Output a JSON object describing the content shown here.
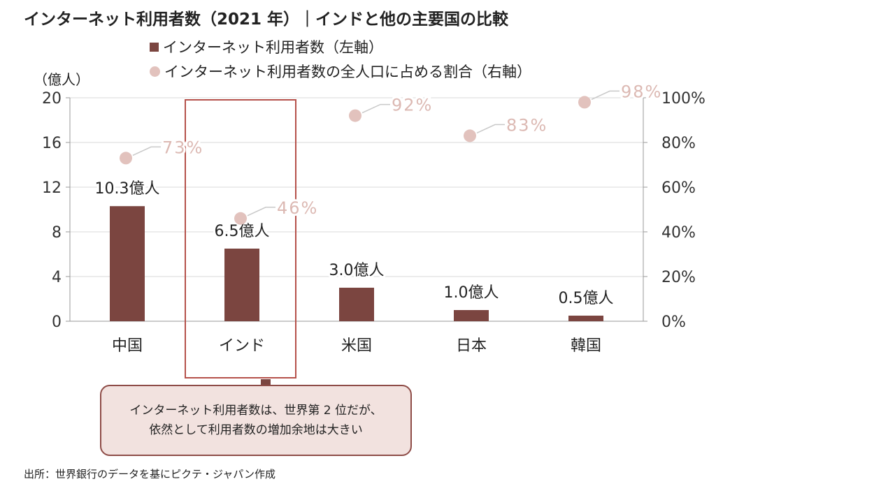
{
  "title": "インターネット利用者数（2021 年）｜インドと他の主要国の比較",
  "legend": {
    "bar_label": "インターネット利用者数（左軸）",
    "dot_label": "インターネット利用者数の全人口に占める割合（右軸）"
  },
  "left_unit": "（億人）",
  "callout": {
    "line1": "インターネット利用者数は、世界第 2 位だが、",
    "line2": "依然として利用者数の増加余地は大きい"
  },
  "source": "出所：世界銀行のデータを基にピクテ・ジャパン作成",
  "colors": {
    "bar": "#7b4540",
    "dot": "#e2c2bd",
    "dot_label": "#dcb9b3",
    "highlight_box": "#b5514a",
    "callout_bg": "#f2e2df",
    "gridline": "#d9d9d9"
  },
  "chart_data": {
    "type": "bar",
    "categories": [
      "中国",
      "インド",
      "米国",
      "日本",
      "韓国"
    ],
    "series": [
      {
        "name": "インターネット利用者数（左軸）",
        "type": "bar",
        "axis": "left",
        "values": [
          10.3,
          6.5,
          3.0,
          1.0,
          0.5
        ],
        "labels": [
          "10.3億人",
          "6.5億人",
          "3.0億人",
          "1.0億人",
          "0.5億人"
        ]
      },
      {
        "name": "インターネット利用者数の全人口に占める割合（右軸）",
        "type": "scatter",
        "axis": "right",
        "values": [
          73,
          46,
          92,
          83,
          98
        ],
        "labels": [
          "73%",
          "46%",
          "92%",
          "83%",
          "98%"
        ]
      }
    ],
    "left_axis": {
      "ylim": [
        0,
        20
      ],
      "ticks": [
        0,
        4,
        8,
        12,
        16,
        20
      ],
      "tick_labels": [
        "0",
        "4",
        "8",
        "12",
        "16",
        "20"
      ]
    },
    "right_axis": {
      "ylim": [
        0,
        100
      ],
      "ticks": [
        0,
        20,
        40,
        60,
        80,
        100
      ],
      "tick_labels": [
        "0%",
        "20%",
        "40%",
        "60%",
        "80%",
        "100%"
      ]
    },
    "highlight_category": "インド",
    "grid": true,
    "legend_position": "top"
  }
}
